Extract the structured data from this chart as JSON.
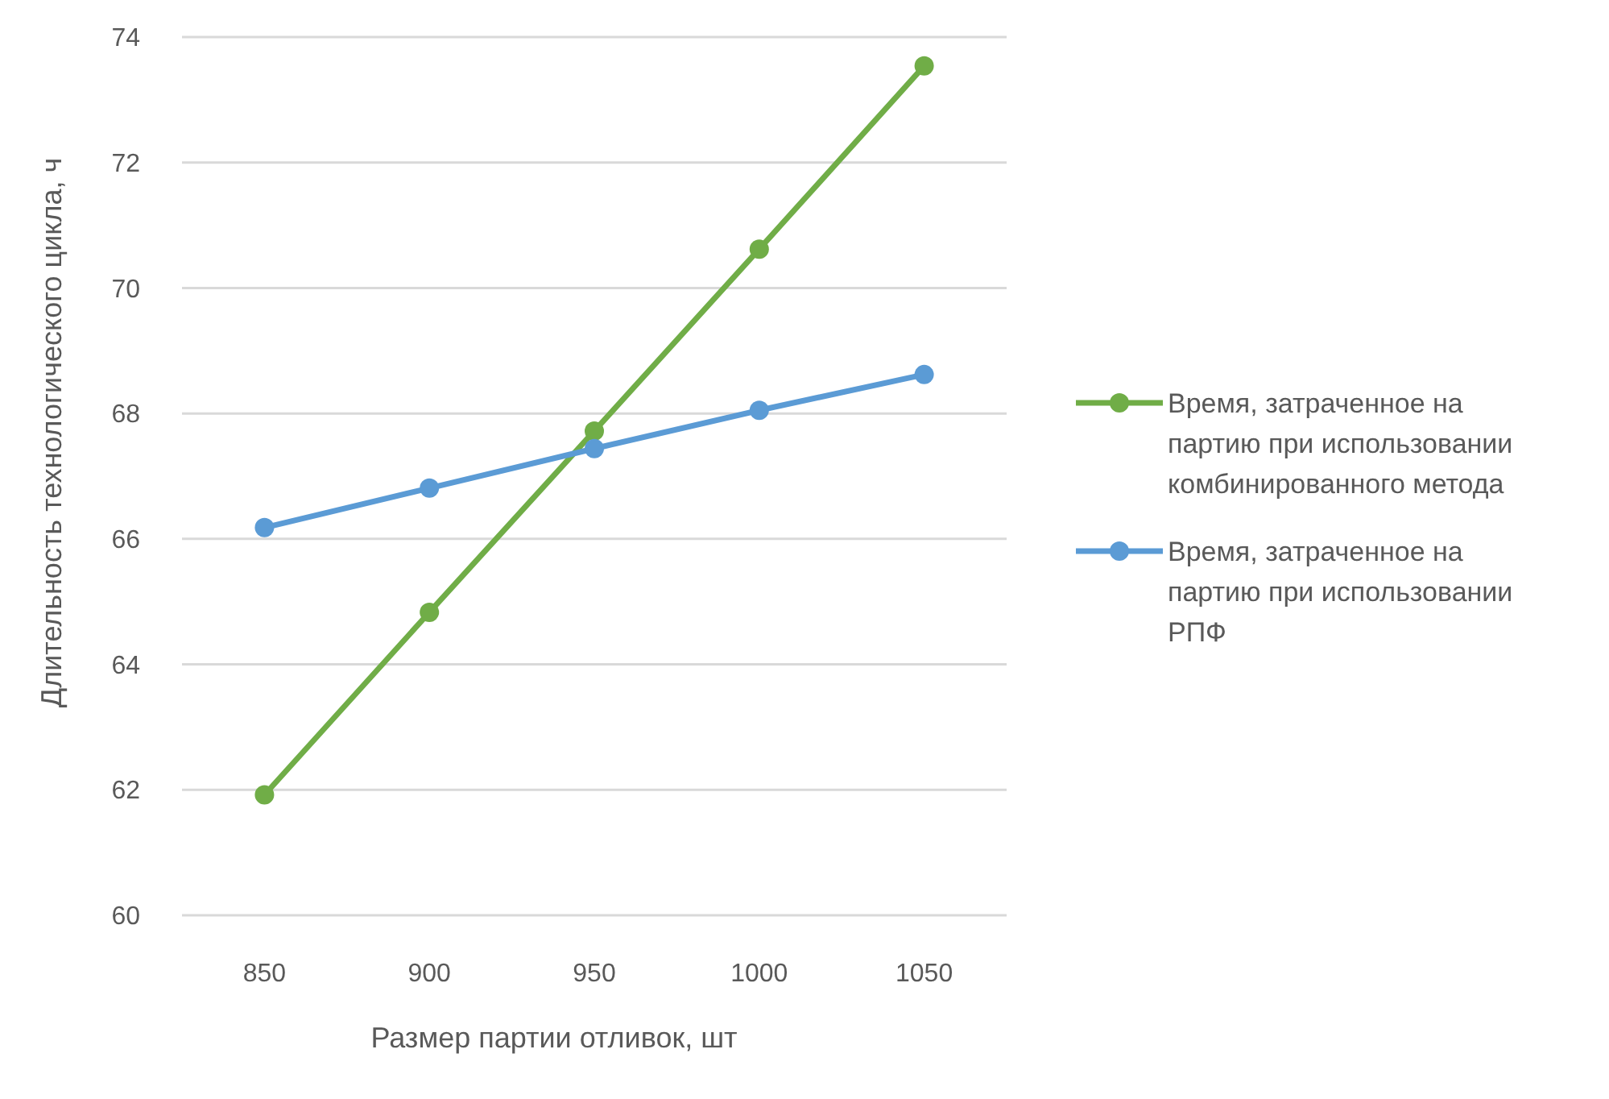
{
  "chart_data": {
    "type": "line",
    "xlabel": "Размер партии отливок, шт",
    "ylabel": "Длительность технологического цикла, ч",
    "categories": [
      "850",
      "900",
      "950",
      "1000",
      "1050"
    ],
    "series": [
      {
        "name": "Время, затраченное на партию при использовании комбинированного метода",
        "color": "#70ad47",
        "values": [
          61.92,
          64.83,
          67.72,
          70.62,
          73.54
        ]
      },
      {
        "name": "Время, затраченное на партию при использовании РПФ",
        "color": "#5b9bd5",
        "values": [
          66.18,
          66.81,
          67.44,
          68.05,
          68.62
        ]
      }
    ],
    "ylim": [
      60,
      74
    ],
    "yticks": [
      60,
      62,
      64,
      66,
      68,
      70,
      72,
      74
    ],
    "grid": "y",
    "legend": "right",
    "marker": "circle",
    "line_style": "solid"
  }
}
